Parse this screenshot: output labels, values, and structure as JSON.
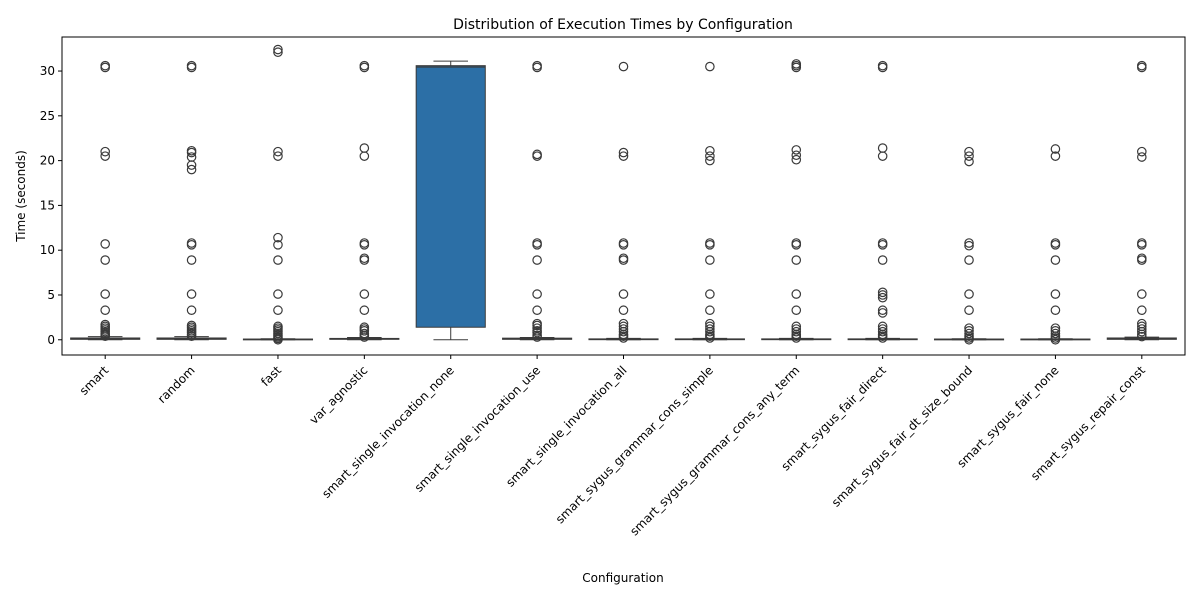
{
  "chart_data": {
    "type": "box",
    "title": "Distribution of Execution Times by Configuration",
    "xlabel": "Configuration",
    "ylabel": "Time (seconds)",
    "ylim": [
      -1.7,
      33.8
    ],
    "yticks": [
      0,
      5,
      10,
      15,
      20,
      25,
      30
    ],
    "grid": false,
    "colors": {
      "box_fill": "#2c6fa6",
      "line": "#3a3a3a",
      "outlier": "#3a3a3a"
    },
    "categories": [
      "smart",
      "random",
      "fast",
      "var_agnostic",
      "smart_single_invocation_none",
      "smart_single_invocation_use",
      "smart_single_invocation_all",
      "smart_sygus_grammar_cons_simple",
      "smart_sygus_grammar_cons_any_term",
      "smart_sygus_fair_direct",
      "smart_sygus_fair_dt_size_bound",
      "smart_sygus_fair_none",
      "smart_sygus_repair_const"
    ],
    "boxes": [
      {
        "whislo": 0.0,
        "q1": 0.05,
        "med": 0.1,
        "q3": 0.2,
        "whishi": 0.35,
        "fliers": [
          0.4,
          0.55,
          0.7,
          0.9,
          1.1,
          1.3,
          1.5,
          1.7,
          3.3,
          5.1,
          8.9,
          10.7,
          20.5,
          21.0,
          30.4,
          30.6
        ]
      },
      {
        "whislo": 0.0,
        "q1": 0.05,
        "med": 0.1,
        "q3": 0.2,
        "whishi": 0.35,
        "fliers": [
          0.4,
          0.6,
          0.8,
          1.0,
          1.2,
          1.4,
          1.6,
          3.3,
          5.1,
          8.9,
          10.6,
          10.8,
          19.0,
          19.5,
          20.4,
          20.9,
          21.1,
          30.4,
          30.6
        ]
      },
      {
        "whislo": 0.0,
        "q1": 0.02,
        "med": 0.05,
        "q3": 0.08,
        "whishi": 0.12,
        "fliers": [
          0.0,
          0.15,
          0.3,
          0.5,
          0.7,
          0.9,
          1.1,
          1.3,
          1.5,
          3.3,
          5.1,
          8.9,
          10.6,
          11.4,
          20.5,
          21.0,
          32.1,
          32.4
        ]
      },
      {
        "whislo": 0.0,
        "q1": 0.05,
        "med": 0.1,
        "q3": 0.15,
        "whishi": 0.25,
        "fliers": [
          0.3,
          0.5,
          0.7,
          1.0,
          1.2,
          1.4,
          3.3,
          5.1,
          8.9,
          9.1,
          10.6,
          10.8,
          20.5,
          21.4,
          30.4,
          30.6
        ]
      },
      {
        "whislo": 0.0,
        "q1": 1.4,
        "med": 30.45,
        "q3": 30.6,
        "whishi": 31.1,
        "fliers": []
      },
      {
        "whislo": 0.0,
        "q1": 0.05,
        "med": 0.1,
        "q3": 0.18,
        "whishi": 0.25,
        "fliers": [
          0.3,
          0.5,
          0.8,
          1.0,
          1.3,
          1.6,
          1.8,
          3.3,
          5.1,
          8.9,
          10.6,
          10.8,
          20.5,
          20.7,
          30.4,
          30.6
        ]
      },
      {
        "whislo": 0.0,
        "q1": 0.02,
        "med": 0.05,
        "q3": 0.1,
        "whishi": 0.15,
        "fliers": [
          0.2,
          0.4,
          0.6,
          0.9,
          1.2,
          1.5,
          1.8,
          3.3,
          5.1,
          8.9,
          9.1,
          10.6,
          10.8,
          20.5,
          20.9,
          30.5
        ]
      },
      {
        "whislo": 0.0,
        "q1": 0.02,
        "med": 0.05,
        "q3": 0.1,
        "whishi": 0.15,
        "fliers": [
          0.2,
          0.4,
          0.6,
          0.9,
          1.2,
          1.5,
          1.8,
          3.3,
          5.1,
          8.9,
          10.6,
          10.8,
          20.0,
          20.5,
          21.1,
          30.5
        ]
      },
      {
        "whislo": 0.0,
        "q1": 0.02,
        "med": 0.05,
        "q3": 0.1,
        "whishi": 0.15,
        "fliers": [
          0.2,
          0.4,
          0.6,
          0.9,
          1.2,
          1.5,
          3.3,
          5.1,
          8.9,
          10.6,
          10.8,
          20.1,
          20.6,
          21.2,
          30.4,
          30.6,
          30.8
        ]
      },
      {
        "whislo": 0.0,
        "q1": 0.02,
        "med": 0.05,
        "q3": 0.1,
        "whishi": 0.15,
        "fliers": [
          0.2,
          0.4,
          0.6,
          0.9,
          1.2,
          1.5,
          3.0,
          3.3,
          4.7,
          5.0,
          5.3,
          8.9,
          10.6,
          10.8,
          20.5,
          21.4,
          30.4,
          30.6
        ]
      },
      {
        "whislo": 0.0,
        "q1": 0.02,
        "med": 0.05,
        "q3": 0.08,
        "whishi": 0.12,
        "fliers": [
          0.0,
          0.2,
          0.4,
          0.7,
          1.0,
          1.3,
          3.3,
          5.1,
          8.9,
          10.5,
          10.8,
          19.9,
          20.5,
          21.0
        ]
      },
      {
        "whislo": 0.0,
        "q1": 0.02,
        "med": 0.05,
        "q3": 0.08,
        "whishi": 0.12,
        "fliers": [
          0.0,
          0.2,
          0.4,
          0.7,
          1.0,
          1.3,
          3.3,
          5.1,
          8.9,
          10.6,
          10.8,
          20.5,
          21.3
        ]
      },
      {
        "whislo": 0.0,
        "q1": 0.05,
        "med": 0.1,
        "q3": 0.2,
        "whishi": 0.3,
        "fliers": [
          0.35,
          0.6,
          0.9,
          1.2,
          1.5,
          1.8,
          3.3,
          5.1,
          8.9,
          9.1,
          10.6,
          10.8,
          20.4,
          21.0,
          30.4,
          30.6
        ]
      }
    ]
  }
}
